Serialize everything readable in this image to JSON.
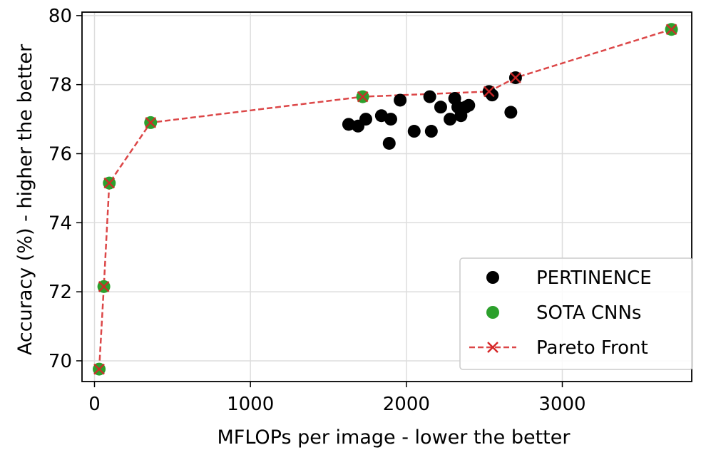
{
  "chart_data": {
    "type": "scatter",
    "xlabel": "MFLOPs per image - lower the better",
    "ylabel": "Accuracy (%) - higher the better",
    "xlim": [
      -80,
      3830
    ],
    "ylim": [
      69.4,
      80.1
    ],
    "x_ticks": [
      0,
      1000,
      2000,
      3000
    ],
    "y_ticks": [
      70,
      72,
      74,
      76,
      78,
      80
    ],
    "grid": true,
    "legend_position": "lower right",
    "series": [
      {
        "name": "PERTINENCE",
        "kind": "scatter",
        "color": "#000000",
        "points": [
          {
            "x": 1630,
            "y": 76.85
          },
          {
            "x": 1690,
            "y": 76.8
          },
          {
            "x": 1740,
            "y": 77.0
          },
          {
            "x": 1840,
            "y": 77.1
          },
          {
            "x": 1890,
            "y": 76.3
          },
          {
            "x": 1900,
            "y": 77.0
          },
          {
            "x": 1960,
            "y": 77.55
          },
          {
            "x": 2050,
            "y": 76.65
          },
          {
            "x": 2160,
            "y": 76.65
          },
          {
            "x": 2150,
            "y": 77.65
          },
          {
            "x": 2220,
            "y": 77.35
          },
          {
            "x": 2280,
            "y": 77.0
          },
          {
            "x": 2310,
            "y": 77.6
          },
          {
            "x": 2330,
            "y": 77.35
          },
          {
            "x": 2350,
            "y": 77.1
          },
          {
            "x": 2380,
            "y": 77.35
          },
          {
            "x": 2400,
            "y": 77.4
          },
          {
            "x": 2550,
            "y": 77.7
          },
          {
            "x": 2670,
            "y": 77.2
          },
          {
            "x": 2530,
            "y": 77.8
          },
          {
            "x": 2700,
            "y": 78.2
          }
        ]
      },
      {
        "name": "SOTA CNNs",
        "kind": "scatter",
        "color": "#2ca02c",
        "points": [
          {
            "x": 30,
            "y": 69.76
          },
          {
            "x": 60,
            "y": 72.15
          },
          {
            "x": 95,
            "y": 75.15
          },
          {
            "x": 360,
            "y": 76.9
          },
          {
            "x": 1720,
            "y": 77.65
          },
          {
            "x": 3700,
            "y": 79.6
          }
        ]
      },
      {
        "name": "Pareto Front",
        "kind": "line",
        "color": "#d62728",
        "points": [
          {
            "x": 30,
            "y": 69.76
          },
          {
            "x": 60,
            "y": 72.15
          },
          {
            "x": 95,
            "y": 75.15
          },
          {
            "x": 360,
            "y": 76.9
          },
          {
            "x": 1720,
            "y": 77.65
          },
          {
            "x": 2530,
            "y": 77.8
          },
          {
            "x": 2700,
            "y": 78.2
          },
          {
            "x": 3700,
            "y": 79.6
          }
        ]
      }
    ]
  }
}
